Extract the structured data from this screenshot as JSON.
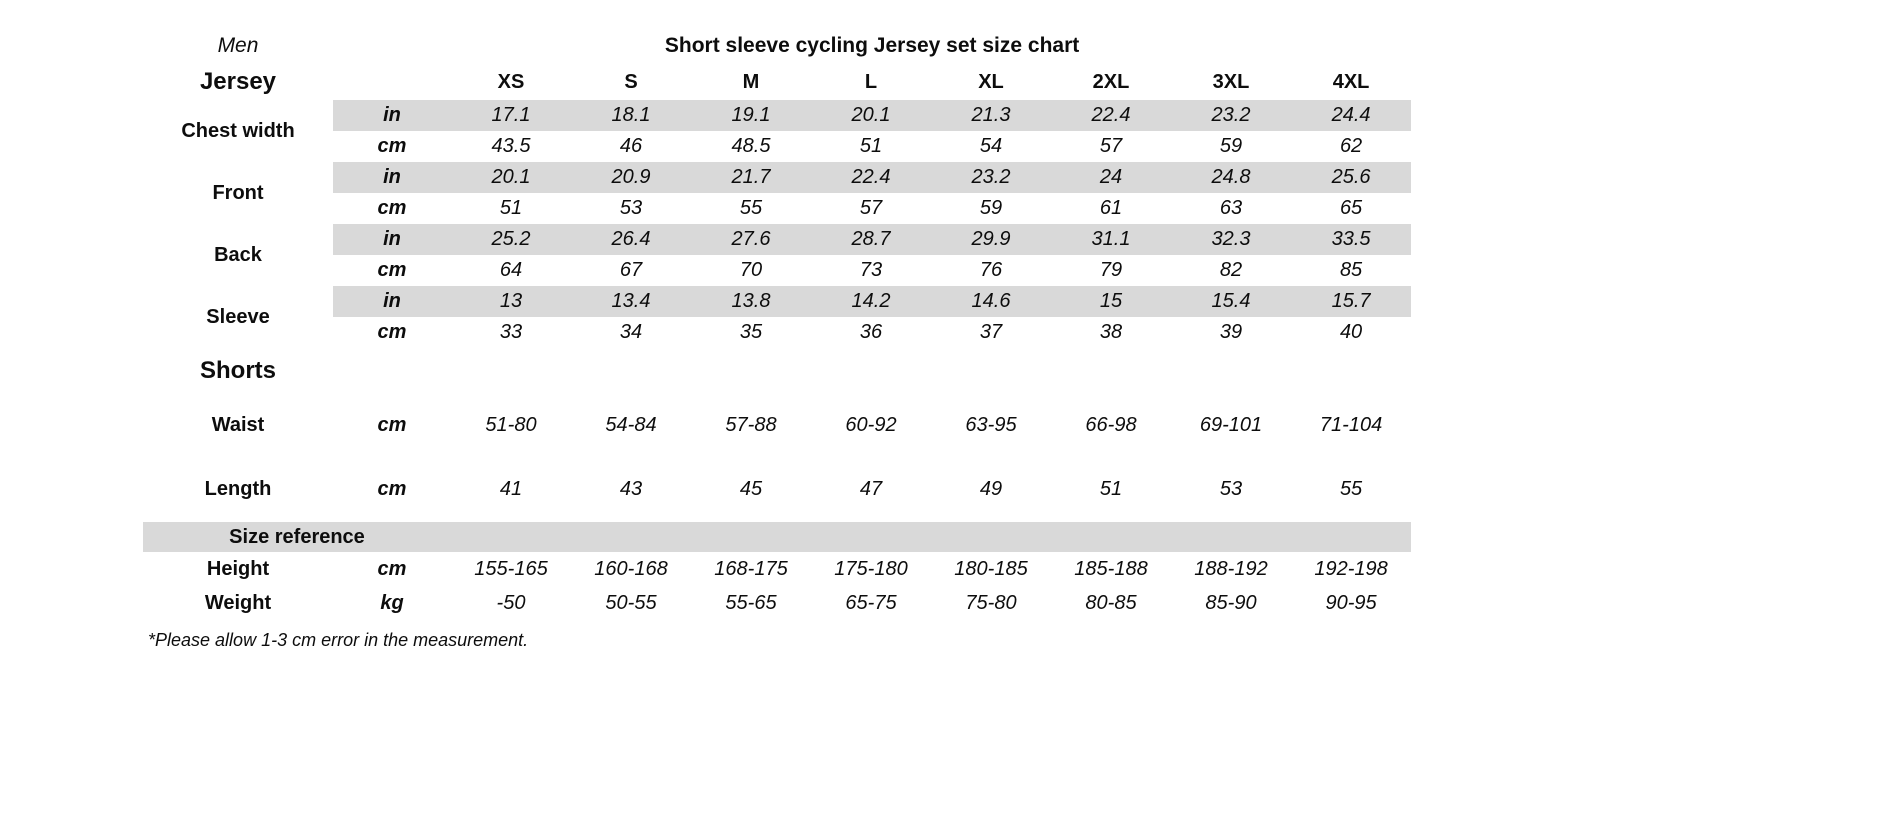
{
  "chart_data": {
    "type": "table",
    "title": "Short sleeve cycling Jersey set size chart",
    "gender": "Men",
    "columns": [
      "XS",
      "S",
      "M",
      "L",
      "XL",
      "2XL",
      "3XL",
      "4XL"
    ],
    "shade_color": "#d9d9d9",
    "jersey": {
      "heading": "Jersey",
      "rows": [
        {
          "label": "Chest width",
          "in": {
            "unit": "in",
            "values": [
              "17.1",
              "18.1",
              "19.1",
              "20.1",
              "21.3",
              "22.4",
              "23.2",
              "24.4"
            ]
          },
          "cm": {
            "unit": "cm",
            "values": [
              "43.5",
              "46",
              "48.5",
              "51",
              "54",
              "57",
              "59",
              "62"
            ]
          }
        },
        {
          "label": "Front",
          "in": {
            "unit": "in",
            "values": [
              "20.1",
              "20.9",
              "21.7",
              "22.4",
              "23.2",
              "24",
              "24.8",
              "25.6"
            ]
          },
          "cm": {
            "unit": "cm",
            "values": [
              "51",
              "53",
              "55",
              "57",
              "59",
              "61",
              "63",
              "65"
            ]
          }
        },
        {
          "label": "Back",
          "in": {
            "unit": "in",
            "values": [
              "25.2",
              "26.4",
              "27.6",
              "28.7",
              "29.9",
              "31.1",
              "32.3",
              "33.5"
            ]
          },
          "cm": {
            "unit": "cm",
            "values": [
              "64",
              "67",
              "70",
              "73",
              "76",
              "79",
              "82",
              "85"
            ]
          }
        },
        {
          "label": "Sleeve",
          "in": {
            "unit": "in",
            "values": [
              "13",
              "13.4",
              "13.8",
              "14.2",
              "14.6",
              "15",
              "15.4",
              "15.7"
            ]
          },
          "cm": {
            "unit": "cm",
            "values": [
              "33",
              "34",
              "35",
              "36",
              "37",
              "38",
              "39",
              "40"
            ]
          }
        }
      ]
    },
    "shorts": {
      "heading": "Shorts",
      "rows": [
        {
          "label": "Waist",
          "unit": "cm",
          "values": [
            "51-80",
            "54-84",
            "57-88",
            "60-92",
            "63-95",
            "66-98",
            "69-101",
            "71-104"
          ]
        },
        {
          "label": "Length",
          "unit": "cm",
          "values": [
            "41",
            "43",
            "45",
            "47",
            "49",
            "51",
            "53",
            "55"
          ]
        }
      ]
    },
    "reference": {
      "heading": "Size reference",
      "rows": [
        {
          "label": "Height",
          "unit": "cm",
          "values": [
            "155-165",
            "160-168",
            "168-175",
            "175-180",
            "180-185",
            "185-188",
            "188-192",
            "192-198"
          ]
        },
        {
          "label": "Weight",
          "unit": "kg",
          "values": [
            "-50",
            "50-55",
            "55-65",
            "65-75",
            "75-80",
            "80-85",
            "85-90",
            "90-95"
          ]
        }
      ]
    },
    "footnote": "*Please allow 1-3 cm error in the measurement."
  }
}
